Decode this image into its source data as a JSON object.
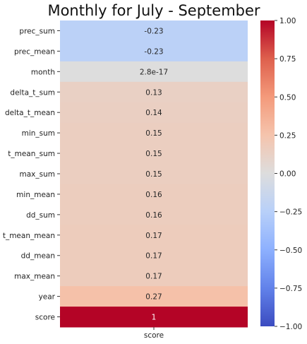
{
  "chart_data": {
    "type": "heatmap",
    "title": "Monthly for July - September",
    "rows": [
      "prec_sum",
      "prec_mean",
      "month",
      "delta_t_sum",
      "delta_t_mean",
      "min_sum",
      "t_mean_sum",
      "max_sum",
      "min_mean",
      "dd_sum",
      "t_mean_mean",
      "dd_mean",
      "max_mean",
      "year",
      "score"
    ],
    "columns": [
      "score"
    ],
    "values": [
      -0.23,
      -0.23,
      2.8e-17,
      0.13,
      0.14,
      0.15,
      0.15,
      0.15,
      0.16,
      0.16,
      0.17,
      0.17,
      0.17,
      0.27,
      1
    ],
    "annotations": [
      "-0.23",
      "-0.23",
      "2.8e-17",
      "0.13",
      "0.14",
      "0.15",
      "0.15",
      "0.15",
      "0.16",
      "0.16",
      "0.17",
      "0.17",
      "0.17",
      "0.27",
      "1"
    ],
    "colormap": "coolwarm",
    "vmin": -1,
    "vmax": 1,
    "colorbar_ticks": [
      1.0,
      0.75,
      0.5,
      0.25,
      0.0,
      -0.25,
      -0.5,
      -0.75,
      -1.0
    ],
    "colorbar_tick_labels": [
      "1.00",
      "0.75",
      "0.50",
      "0.25",
      "0.00",
      "−0.25",
      "−0.50",
      "−0.75",
      "−1.00"
    ],
    "colorbar_placement": "right"
  }
}
